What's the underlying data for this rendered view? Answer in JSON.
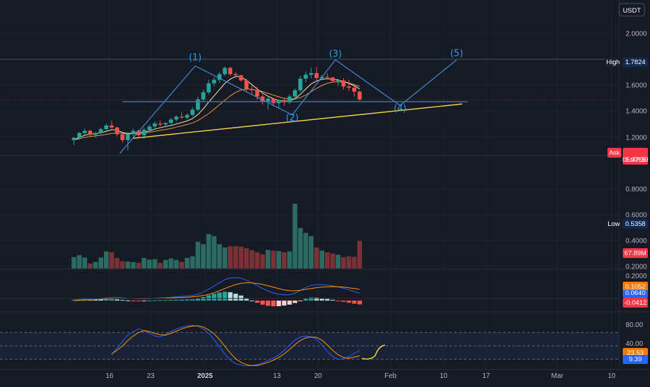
{
  "header": {
    "currency": "USDT"
  },
  "price_axis": {
    "ticks": [
      "2.0000",
      "1.6000",
      "1.4000",
      "1.2000",
      "0.8000",
      "0.6000",
      "0.4000",
      "0.2000"
    ]
  },
  "badges": {
    "high": {
      "label": "High",
      "value": "1.7824"
    },
    "ask": {
      "label": "Ask",
      "value": "1.0765",
      "countdown": "05:47:39"
    },
    "low": {
      "label": "Low",
      "value": "0.5358"
    },
    "volume": {
      "value": "67.89M"
    },
    "macd_top": {
      "value": "0.1052"
    },
    "macd_mid": {
      "value": "0.0640"
    },
    "macd_hist": {
      "value": "-0.0412"
    },
    "stoch_k": {
      "value": "23.53"
    },
    "stoch_d": {
      "value": "9.39"
    }
  },
  "macd_axis": {
    "ticks": [
      "0.2000"
    ]
  },
  "stoch_axis": {
    "ticks": [
      "80.00",
      "40.00",
      "0.00"
    ]
  },
  "x_axis": {
    "labels": [
      {
        "text": "16",
        "bold": false
      },
      {
        "text": "23",
        "bold": false
      },
      {
        "text": "2025",
        "bold": true
      },
      {
        "text": "13",
        "bold": false
      },
      {
        "text": "20",
        "bold": false
      },
      {
        "text": "Feb",
        "bold": false
      },
      {
        "text": "10",
        "bold": false
      },
      {
        "text": "17",
        "bold": false
      },
      {
        "text": "Mar",
        "bold": false
      },
      {
        "text": "10",
        "bold": false
      }
    ]
  },
  "wave_labels": [
    "(1)",
    "(2)",
    "(3)",
    "(4)",
    "(5)"
  ],
  "colors": {
    "background": "#161a25",
    "bull": "#26a69a",
    "bear": "#ef5350",
    "bull_volume": "#2b6b62",
    "bear_volume": "#7a3236",
    "pattern_line": "#3f8bd8",
    "trend_line": "#f2d54a",
    "ma_fast": "#ffe9b0",
    "ma_slow": "#e39a3a",
    "macd": "#2962ff",
    "signal": "#ff9800",
    "ask_badge": "#f23645",
    "low_badge": "#0f2a52"
  },
  "chart_data": {
    "type": "candlestick",
    "y_scale": "log",
    "ylim": [
      0.2,
      2.0
    ],
    "candles": [
      [
        0.65,
        0.675,
        0.61,
        0.67
      ],
      [
        0.67,
        0.72,
        0.65,
        0.71
      ],
      [
        0.71,
        0.75,
        0.69,
        0.73
      ],
      [
        0.73,
        0.74,
        0.68,
        0.695
      ],
      [
        0.695,
        0.72,
        0.67,
        0.71
      ],
      [
        0.71,
        0.76,
        0.7,
        0.745
      ],
      [
        0.745,
        0.8,
        0.73,
        0.78
      ],
      [
        0.78,
        0.83,
        0.75,
        0.76
      ],
      [
        0.76,
        0.77,
        0.68,
        0.7
      ],
      [
        0.7,
        0.71,
        0.63,
        0.65
      ],
      [
        0.65,
        0.72,
        0.57,
        0.7
      ],
      [
        0.7,
        0.75,
        0.66,
        0.73
      ],
      [
        0.73,
        0.74,
        0.67,
        0.69
      ],
      [
        0.69,
        0.76,
        0.66,
        0.74
      ],
      [
        0.74,
        0.79,
        0.72,
        0.77
      ],
      [
        0.77,
        0.82,
        0.74,
        0.8
      ],
      [
        0.8,
        0.83,
        0.77,
        0.79
      ],
      [
        0.79,
        0.81,
        0.76,
        0.805
      ],
      [
        0.805,
        0.86,
        0.79,
        0.84
      ],
      [
        0.84,
        0.89,
        0.82,
        0.87
      ],
      [
        0.87,
        0.92,
        0.85,
        0.86
      ],
      [
        0.86,
        0.91,
        0.84,
        0.89
      ],
      [
        0.89,
        0.98,
        0.87,
        0.95
      ],
      [
        0.95,
        1.12,
        0.93,
        1.08
      ],
      [
        1.08,
        1.22,
        1.05,
        1.18
      ],
      [
        1.18,
        1.38,
        1.15,
        1.32
      ],
      [
        1.32,
        1.43,
        1.27,
        1.38
      ],
      [
        1.38,
        1.52,
        1.33,
        1.48
      ],
      [
        1.48,
        1.63,
        1.45,
        1.6
      ],
      [
        1.6,
        1.62,
        1.45,
        1.48
      ],
      [
        1.48,
        1.52,
        1.41,
        1.46
      ],
      [
        1.46,
        1.47,
        1.35,
        1.37
      ],
      [
        1.37,
        1.4,
        1.18,
        1.23
      ],
      [
        1.23,
        1.28,
        1.14,
        1.21
      ],
      [
        1.21,
        1.26,
        1.08,
        1.12
      ],
      [
        1.12,
        1.15,
        1.01,
        1.05
      ],
      [
        1.05,
        1.12,
        0.95,
        1.09
      ],
      [
        1.09,
        1.1,
        0.99,
        1.03
      ],
      [
        1.03,
        1.08,
        0.96,
        1.07
      ],
      [
        1.07,
        1.09,
        1.0,
        1.04
      ],
      [
        1.04,
        1.15,
        1.02,
        1.12
      ],
      [
        1.12,
        1.24,
        1.08,
        1.21
      ],
      [
        1.21,
        1.45,
        1.18,
        1.4
      ],
      [
        1.4,
        1.53,
        1.34,
        1.47
      ],
      [
        1.47,
        1.6,
        1.4,
        1.5
      ],
      [
        1.5,
        1.62,
        1.35,
        1.41
      ],
      [
        1.41,
        1.46,
        1.37,
        1.43
      ],
      [
        1.43,
        1.5,
        1.38,
        1.42
      ],
      [
        1.42,
        1.43,
        1.33,
        1.36
      ],
      [
        1.36,
        1.4,
        1.28,
        1.37
      ],
      [
        1.37,
        1.41,
        1.22,
        1.27
      ],
      [
        1.27,
        1.38,
        1.2,
        1.25
      ],
      [
        1.25,
        1.28,
        1.12,
        1.19
      ],
      [
        1.19,
        1.21,
        1.06,
        1.08
      ]
    ],
    "volume_millions": [
      28,
      33,
      27,
      12,
      16,
      27,
      42,
      40,
      26,
      18,
      17,
      16,
      14,
      26,
      22,
      23,
      14,
      21,
      25,
      21,
      16,
      26,
      30,
      66,
      60,
      85,
      80,
      60,
      52,
      55,
      55,
      54,
      50,
      45,
      40,
      35,
      46,
      44,
      43,
      40,
      42,
      160,
      100,
      88,
      80,
      52,
      44,
      40,
      37,
      34,
      28,
      30,
      29,
      68
    ],
    "ma_fast": [
      0.65,
      0.672,
      0.69,
      0.7,
      0.705,
      0.712,
      0.725,
      0.74,
      0.735,
      0.715,
      0.705,
      0.71,
      0.712,
      0.718,
      0.73,
      0.745,
      0.758,
      0.77,
      0.78,
      0.795,
      0.81,
      0.825,
      0.85,
      0.895,
      0.96,
      1.045,
      1.13,
      1.22,
      1.32,
      1.39,
      1.44,
      1.43,
      1.37,
      1.3,
      1.23,
      1.17,
      1.125,
      1.09,
      1.065,
      1.055,
      1.06,
      1.09,
      1.15,
      1.23,
      1.31,
      1.36,
      1.39,
      1.4,
      1.39,
      1.375,
      1.35,
      1.32,
      1.28,
      1.23
    ],
    "ma_slow": [
      0.65,
      0.662,
      0.672,
      0.68,
      0.685,
      0.69,
      0.698,
      0.706,
      0.71,
      0.708,
      0.703,
      0.703,
      0.705,
      0.71,
      0.716,
      0.725,
      0.734,
      0.742,
      0.752,
      0.764,
      0.777,
      0.79,
      0.805,
      0.83,
      0.865,
      0.905,
      0.955,
      1.01,
      1.07,
      1.13,
      1.18,
      1.215,
      1.23,
      1.225,
      1.21,
      1.19,
      1.165,
      1.14,
      1.115,
      1.095,
      1.085,
      1.09,
      1.105,
      1.14,
      1.19,
      1.24,
      1.285,
      1.32,
      1.34,
      1.345,
      1.34,
      1.325,
      1.3,
      1.27
    ],
    "elliott_points": [
      {
        "i": 8.5,
        "price": 0.55
      },
      {
        "i": 22.5,
        "price": 1.64
      },
      {
        "i": 40.5,
        "price": 0.89
      },
      {
        "i": 48.5,
        "price": 1.77
      },
      {
        "i": 60.5,
        "price": 1.0
      },
      {
        "i": 71.0,
        "price": 1.77
      }
    ],
    "wave_label_points": [
      {
        "i": 22.5,
        "price": 1.76
      },
      {
        "i": 40.5,
        "price": 0.83
      },
      {
        "i": 48.5,
        "price": 1.84
      },
      {
        "i": 60.5,
        "price": 0.93
      },
      {
        "i": 71.0,
        "price": 1.85
      }
    ],
    "neckline": {
      "i0": 9.0,
      "i1": 73.0,
      "price": 1.05
    },
    "trendline": [
      {
        "i": 11.0,
        "price": 0.665
      },
      {
        "i": 72.0,
        "price": 1.02
      }
    ],
    "high_level": 1.7824,
    "ask_level": 1.0765,
    "low_level": 0.5358,
    "macd": {
      "ylim": [
        -0.06,
        0.22
      ],
      "macd_line": [
        0.005,
        0.009,
        0.012,
        0.014,
        0.016,
        0.018,
        0.021,
        0.024,
        0.025,
        0.022,
        0.018,
        0.016,
        0.014,
        0.014,
        0.016,
        0.019,
        0.022,
        0.024,
        0.027,
        0.03,
        0.033,
        0.036,
        0.04,
        0.05,
        0.068,
        0.09,
        0.115,
        0.14,
        0.165,
        0.178,
        0.18,
        0.176,
        0.16,
        0.14,
        0.118,
        0.095,
        0.075,
        0.06,
        0.05,
        0.045,
        0.046,
        0.058,
        0.08,
        0.103,
        0.12,
        0.125,
        0.125,
        0.122,
        0.116,
        0.108,
        0.097,
        0.084,
        0.071,
        0.058
      ],
      "signal_line": [
        0.0,
        0.002,
        0.004,
        0.006,
        0.008,
        0.01,
        0.012,
        0.014,
        0.016,
        0.017,
        0.017,
        0.017,
        0.016,
        0.016,
        0.016,
        0.017,
        0.018,
        0.019,
        0.021,
        0.023,
        0.025,
        0.027,
        0.03,
        0.034,
        0.04,
        0.049,
        0.062,
        0.077,
        0.095,
        0.112,
        0.126,
        0.136,
        0.14,
        0.14,
        0.135,
        0.127,
        0.116,
        0.105,
        0.094,
        0.084,
        0.078,
        0.077,
        0.081,
        0.088,
        0.095,
        0.102,
        0.106,
        0.109,
        0.11,
        0.109,
        0.106,
        0.101,
        0.095,
        0.088
      ],
      "histogram": [
        0.005,
        0.007,
        0.008,
        0.008,
        0.008,
        0.008,
        0.009,
        0.01,
        0.009,
        0.005,
        0.001,
        -0.001,
        -0.002,
        -0.002,
        0.0,
        0.002,
        0.004,
        0.005,
        0.006,
        0.007,
        0.008,
        0.009,
        0.01,
        0.016,
        0.028,
        0.041,
        0.053,
        0.063,
        0.07,
        0.066,
        0.054,
        0.04,
        0.02,
        0.0,
        -0.017,
        -0.032,
        -0.041,
        -0.045,
        -0.044,
        -0.039,
        -0.032,
        -0.019,
        -0.001,
        0.015,
        0.025,
        0.023,
        0.019,
        0.013,
        0.006,
        -0.001,
        -0.009,
        -0.017,
        -0.024,
        -0.03
      ]
    },
    "stochastic": {
      "ylim": [
        0,
        100
      ],
      "k": [
        30,
        45,
        60,
        74,
        82,
        88,
        84,
        78,
        72,
        70,
        76,
        82,
        88,
        92,
        95,
        96,
        94,
        88,
        78,
        64,
        48,
        32,
        18,
        10,
        7,
        5,
        6,
        8,
        12,
        17,
        23,
        30,
        40,
        52,
        63,
        70,
        72,
        70,
        65,
        52,
        38,
        26,
        20,
        21,
        26,
        33,
        40
      ],
      "d": [
        32,
        40,
        50,
        62,
        72,
        80,
        84,
        82,
        78,
        75,
        74,
        78,
        83,
        88,
        92,
        94,
        95,
        92,
        86,
        77,
        64,
        49,
        34,
        21,
        13,
        8,
        6,
        6,
        9,
        13,
        18,
        24,
        32,
        42,
        53,
        62,
        68,
        70,
        69,
        63,
        52,
        40,
        30,
        24,
        22,
        25,
        28
      ],
      "k_start_index": 7
    }
  }
}
